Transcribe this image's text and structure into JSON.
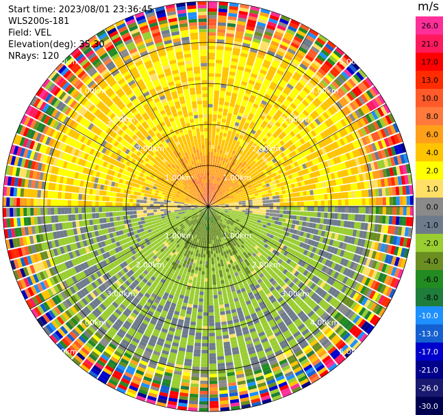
{
  "header": {
    "start_time": "Start time: 2023/08/01 23:36:45",
    "instrument": "WLS200s-181",
    "field": "Field: VEL",
    "elevation": "Elevation(deg): 35.30",
    "nrays": "NRays: 120"
  },
  "colorbar": {
    "unit": "m/s",
    "ticks": [
      "26.0",
      "21.0",
      "17.0",
      "13.0",
      "10.0",
      "8.0",
      "6.0",
      "4.0",
      "2.0",
      "1.0",
      "0.0",
      "-1.0",
      "-2.0",
      "-4.0",
      "-6.0",
      "-8.0",
      "-10.0",
      "-13.0",
      "-17.0",
      "-21.0",
      "-26.0",
      "-30.0"
    ],
    "colors": [
      "#ff2f9a",
      "#ff1a5e",
      "#ff0000",
      "#ff2c00",
      "#ff5a2a",
      "#ff7a3c",
      "#ff9f1a",
      "#ffc400",
      "#ffff00",
      "#ffe066",
      "#8a8a8a",
      "#6e7b8b",
      "#9acd32",
      "#6b8e23",
      "#228b22",
      "#1e7d3a",
      "#1e90ff",
      "#1560d0",
      "#0000cd",
      "#00008b",
      "#191970",
      "#000050"
    ]
  },
  "chart_data": {
    "type": "ppi",
    "field": "VEL",
    "units": "m/s",
    "elevation_deg": 35.3,
    "n_rays": 120,
    "range_rings_km": [
      1.0,
      2.0,
      3.0,
      4.0,
      5.0
    ],
    "range_ring_labels": [
      "1.00km",
      "2.00km",
      "3.00km",
      "4.00km",
      "5.00km"
    ],
    "max_range_km": 5.0,
    "vmin": -30.0,
    "vmax": 26.0,
    "pattern": {
      "near_north": 8.0,
      "mid_north": 2.0,
      "near_south": -6.0,
      "mid_south": -2.0,
      "east_west_transition": 0.0
    }
  }
}
